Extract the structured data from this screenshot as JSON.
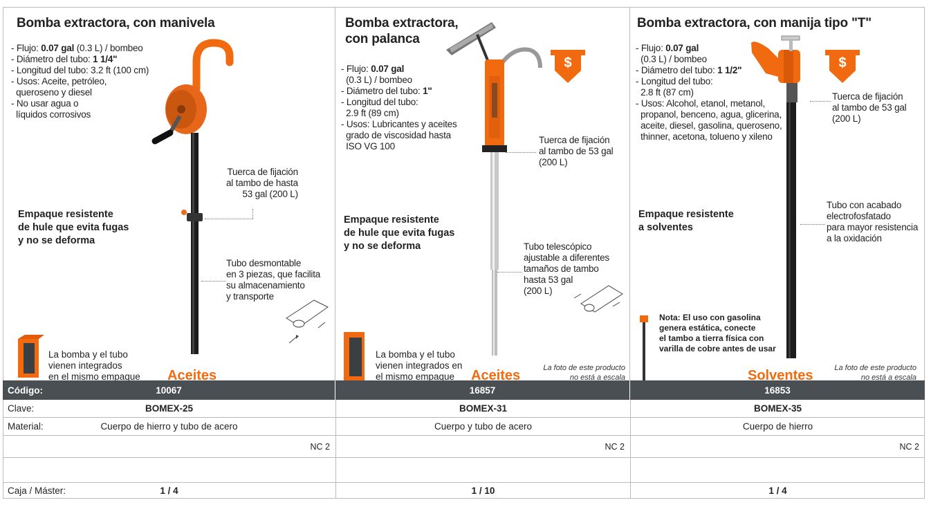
{
  "products": [
    {
      "title_lines": [
        "Bomba extractora, con manivela"
      ],
      "specs": [
        {
          "pre": "- Flujo: ",
          "bold": "0.07 gal",
          "post": " (0.3 L) / bombeo"
        },
        {
          "pre": "- Diámetro del tubo: ",
          "bold": "1 1/4\"",
          "post": ""
        },
        {
          "pre": "- Longitud del tubo: 3.2 ft (100 cm)",
          "bold": "",
          "post": ""
        },
        {
          "pre": "- Usos: Aceite, petróleo,",
          "bold": "",
          "post": ""
        },
        {
          "pre": "  queroseno y diesel",
          "bold": "",
          "post": ""
        },
        {
          "pre": "- No usar agua o",
          "bold": "",
          "post": ""
        },
        {
          "pre": "  líquidos corrosivos",
          "bold": "",
          "post": ""
        }
      ],
      "callouts": [
        [
          "Tuerca de fijación",
          "al tambo de hasta",
          "53 gal (200 L)"
        ],
        [
          "Tubo desmontable",
          "en 3 piezas, que facilita",
          "su almacenamiento",
          "y transporte"
        ]
      ],
      "seal_lines": [
        "Empaque resistente",
        "de hule que evita fugas",
        "y no se deforma"
      ],
      "pack_lines": [
        "La bomba y el tubo",
        "vienen integrados",
        "en el mismo empaque"
      ],
      "category": "Aceites",
      "codigo": "10067",
      "clave": "BOMEX-25",
      "material": "Cuerpo de hierro y tubo de acero",
      "nc": "NC 2",
      "caja": "1 / 4"
    },
    {
      "title_lines": [
        "Bomba extractora,",
        "con palanca"
      ],
      "specs": [
        {
          "pre": "- Flujo: ",
          "bold": "0.07 gal",
          "post": ""
        },
        {
          "pre": "  (0.3 L) / bombeo",
          "bold": "",
          "post": ""
        },
        {
          "pre": "- Diámetro del tubo: ",
          "bold": "1\"",
          "post": ""
        },
        {
          "pre": "- Longitud del tubo:",
          "bold": "",
          "post": ""
        },
        {
          "pre": "  2.9 ft (89 cm)",
          "bold": "",
          "post": ""
        },
        {
          "pre": "- Usos: Lubricantes y aceites",
          "bold": "",
          "post": ""
        },
        {
          "pre": "  grado de viscosidad hasta",
          "bold": "",
          "post": ""
        },
        {
          "pre": "  ISO VG 100",
          "bold": "",
          "post": ""
        }
      ],
      "callouts": [
        [
          "Tuerca de fijación",
          "al tambo de 53 gal",
          "(200 L)"
        ],
        [
          "Tubo telescópico",
          "ajustable a diferentes",
          "tamaños de tambo",
          "hasta 53 gal",
          "(200 L)"
        ]
      ],
      "seal_lines": [
        "Empaque resistente",
        "de hule que evita fugas",
        "y no se deforma"
      ],
      "pack_lines": [
        "La bomba y el tubo",
        "vienen integrados en",
        "el mismo empaque"
      ],
      "category": "Aceites",
      "scale_lines": [
        "La foto de este producto",
        "no está a escala"
      ],
      "price_symbol": "$",
      "codigo": "16857",
      "clave": "BOMEX-31",
      "material": "Cuerpo y tubo de acero",
      "nc": "NC 2",
      "caja": "1 / 10"
    },
    {
      "title_lines": [
        "Bomba extractora, con manija tipo \"T\""
      ],
      "specs": [
        {
          "pre": "- Flujo: ",
          "bold": "0.07 gal",
          "post": ""
        },
        {
          "pre": "  (0.3 L) / bombeo",
          "bold": "",
          "post": ""
        },
        {
          "pre": "- Diámetro del tubo: ",
          "bold": "1 1/2\"",
          "post": ""
        },
        {
          "pre": "- Longitud del tubo:",
          "bold": "",
          "post": ""
        },
        {
          "pre": "  2.8 ft (87 cm)",
          "bold": "",
          "post": ""
        },
        {
          "pre": "- Usos: Alcohol, etanol, metanol,",
          "bold": "",
          "post": ""
        },
        {
          "pre": "  propanol, benceno, agua, glicerina,",
          "bold": "",
          "post": ""
        },
        {
          "pre": "  aceite, diesel, gasolina, queroseno,",
          "bold": "",
          "post": ""
        },
        {
          "pre": "  thinner, acetona, tolueno y xileno",
          "bold": "",
          "post": ""
        }
      ],
      "callouts": [
        [
          "Tuerca de fijación",
          "al tambo de 53 gal",
          "(200 L)"
        ],
        [
          "Tubo con acabado",
          "electrofosfatado",
          "para mayor resistencia",
          "a la oxidación"
        ]
      ],
      "seal_lines": [
        "Empaque resistente",
        "a solventes"
      ],
      "note_lines": [
        "Nota: El uso con gasolina",
        "genera estática, conecte",
        "el tambo a tierra física con",
        "varilla de cobre antes de usar"
      ],
      "category": "Solventes",
      "scale_lines": [
        "La foto de este producto",
        "no está a escala"
      ],
      "price_symbol": "$",
      "codigo": "16853",
      "clave": "BOMEX-35",
      "material": "Cuerpo de hierro",
      "nc": "NC 2",
      "caja": "1 / 4"
    }
  ],
  "table": {
    "codigo_label": "Código:",
    "clave_label": "Clave:",
    "material_label": "Material:",
    "caja_label": "Caja / Máster:"
  },
  "colors": {
    "accent": "#f26a10",
    "header": "#4a4f54",
    "border": "#bbbbbb"
  },
  "icons": [
    "hand-crank-pump",
    "lever-pump",
    "t-handle-pump",
    "price-arrow-icon",
    "tube-assembly-icon",
    "package-box"
  ]
}
